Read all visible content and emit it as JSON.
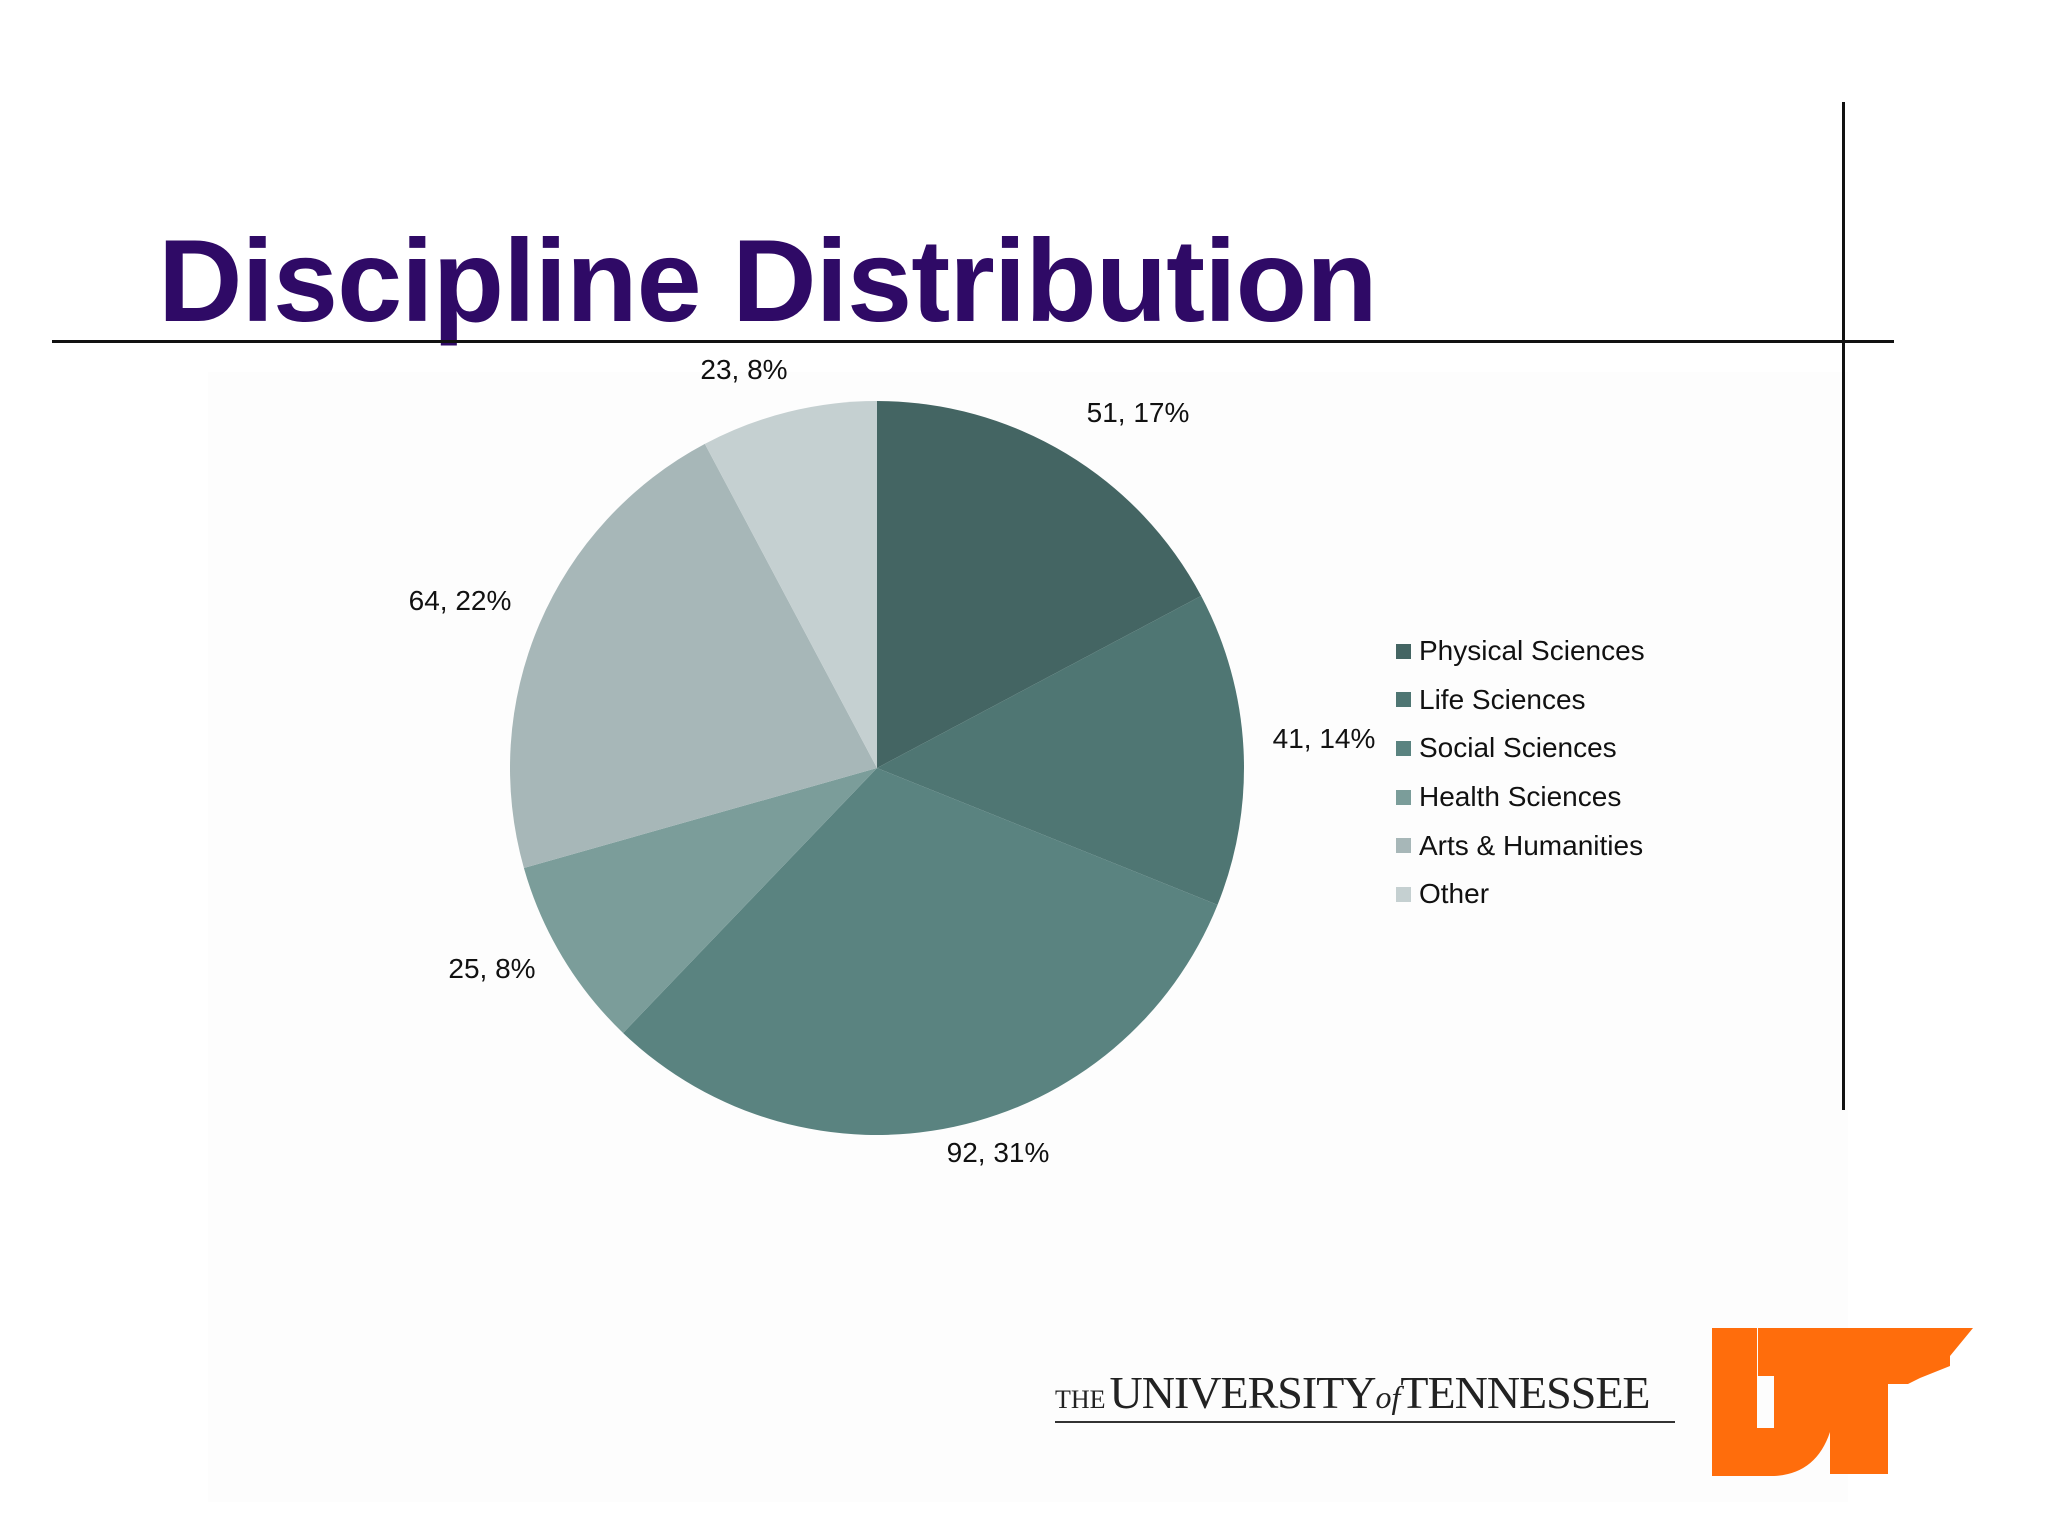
{
  "slide": {
    "title": "Discipline Distribution"
  },
  "chart_data": {
    "type": "pie",
    "title": "",
    "labels": [
      "Physical Sciences",
      "Life Sciences",
      "Social Sciences",
      "Health Sciences",
      "Arts & Humanities",
      "Other"
    ],
    "values": [
      51,
      41,
      92,
      25,
      64,
      23
    ],
    "percents": [
      "17%",
      "14%",
      "31%",
      "8%",
      "22%",
      "8%"
    ],
    "data_labels": [
      "51, 17%",
      "41, 14%",
      "92, 31%",
      "25, 8%",
      "64, 22%",
      "23, 8%"
    ],
    "colors": [
      "#446563",
      "#4f7673",
      "#5a8380",
      "#7b9d9a",
      "#a7b7b8",
      "#c5d0d1"
    ],
    "start_angle": "12 o'clock",
    "direction": "clockwise",
    "legend_position": "right"
  },
  "footer": {
    "logo_text_the": "THE",
    "logo_text_university": "UNIVERSITY",
    "logo_text_of": "of",
    "logo_text_tennessee": "TENNESSEE",
    "mark_color": "#ff6d0c",
    "mark_icon": "ut-power-t-logo"
  }
}
